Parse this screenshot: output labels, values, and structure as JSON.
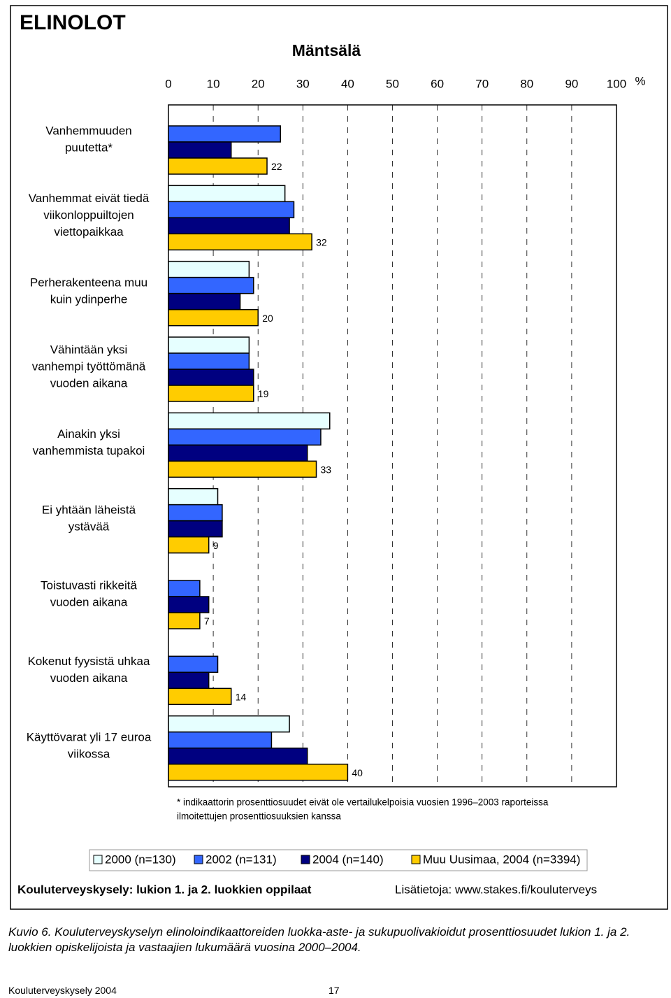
{
  "header": {
    "title": "ELINOLOT"
  },
  "chart_data": {
    "type": "hbar",
    "title": "Mäntsälä",
    "x_unit": "%",
    "categories": [
      [
        "Vanhemmuuden",
        "puutetta*"
      ],
      [
        "Vanhemmat eivät tiedä",
        "viikonloppuiltojen",
        "viettopaikkaa"
      ],
      [
        "Perherakenteena muu",
        "kuin ydinperhe"
      ],
      [
        "Vähintään yksi",
        "vanhempi työttömänä",
        "vuoden aikana"
      ],
      [
        "Ainakin yksi",
        "vanhemmista tupakoi"
      ],
      [
        "Ei yhtään läheistä",
        "ystävää"
      ],
      [
        "Toistuvasti rikkeitä",
        "vuoden aikana"
      ],
      [
        "Kokenut fyysistä uhkaa",
        "vuoden aikana"
      ],
      [
        "Käyttövarat yli 17 euroa",
        "viikossa"
      ]
    ],
    "series": [
      {
        "name": "2000 (n=130)",
        "color": "#e6ffff",
        "values": [
          null,
          26,
          18,
          18,
          36,
          11,
          null,
          null,
          27
        ]
      },
      {
        "name": "2002 (n=131)",
        "color": "#3366ff",
        "values": [
          25,
          28,
          19,
          18,
          34,
          12,
          7,
          11,
          23
        ]
      },
      {
        "name": "2004 (n=140)",
        "color": "#000080",
        "values": [
          14,
          27,
          16,
          19,
          31,
          12,
          9,
          9,
          31
        ]
      },
      {
        "name": "Muu Uusimaa, 2004 (n=3394)",
        "color": "#ffcc00",
        "values": [
          22,
          32,
          20,
          19,
          33,
          9,
          7,
          14,
          40
        ],
        "labeled": true
      }
    ],
    "xlim": [
      0,
      100
    ],
    "xticks": [
      0,
      10,
      20,
      30,
      40,
      50,
      60,
      70,
      80,
      90,
      100
    ],
    "grid": true,
    "footnote": [
      "* indikaattorin prosenttiosuudet eivät ole vertailukelpoisia vuosien 1996–2003 raporteissa",
      "ilmoitettujen prosenttiosuuksien kanssa"
    ],
    "source": "Kouluterveyskysely: lukion 1. ja 2. luokkien oppilaat",
    "more_info": "Lisätietoja: www.stakes.fi/kouluterveys"
  },
  "caption": "Kuvio 6. Kouluterveyskyselyn elinoloindikaattoreiden luokka-aste- ja sukupuolivakioidut prosenttiosuudet lukion 1. ja 2. luokkien opiskelijoista ja vastaajien lukumäärä vuosina 2000–2004.",
  "footer": {
    "left": "Kouluterveyskysely 2004",
    "page": "17"
  }
}
